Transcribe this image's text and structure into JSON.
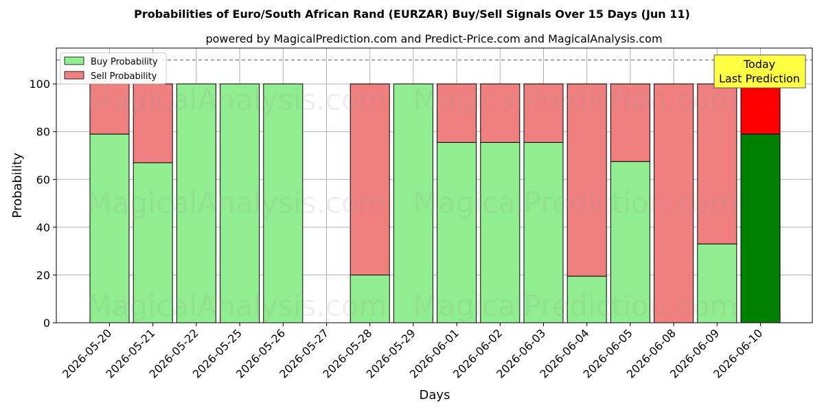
{
  "title": "Probabilities of Euro/South African Rand (EURZAR) Buy/Sell Signals Over 15 Days (Jun 11)",
  "subtitle": "powered by MagicalPrediction.com and Predict-Price.com and MagicalAnalysis.com",
  "watermarks": [
    "MagicalAnalysis.com",
    "MagicalPrediction.com"
  ],
  "annotation": {
    "line1": "Today",
    "line2": "Last Prediction"
  },
  "colors": {
    "buy": "#90ee90",
    "sell": "#f08080",
    "buy_today": "#008000",
    "sell_today": "#ff0000",
    "annotation_bg": "#ffff44"
  },
  "chart_data": {
    "type": "bar",
    "stacked": true,
    "xlabel": "Days",
    "ylabel": "Probability",
    "ylim": [
      0,
      115
    ],
    "yticks": [
      0,
      20,
      40,
      60,
      80,
      100
    ],
    "reference_line": 110,
    "grid": true,
    "legend_position": "top-left",
    "categories": [
      "2026-05-20",
      "2026-05-21",
      "2026-05-22",
      "2026-05-25",
      "2026-05-26",
      "2026-05-27",
      "2026-05-28",
      "2026-05-29",
      "2026-06-01",
      "2026-06-02",
      "2026-06-03",
      "2026-06-04",
      "2026-06-05",
      "2026-06-08",
      "2026-06-09",
      "2026-06-10"
    ],
    "series": [
      {
        "name": "Buy Probability",
        "values": [
          79,
          67,
          100,
          100,
          100,
          0,
          20,
          100,
          75.5,
          75.5,
          75.5,
          19.5,
          67.5,
          0,
          33,
          79
        ]
      },
      {
        "name": "Sell Probability",
        "values": [
          21,
          33,
          0,
          0,
          0,
          0,
          80,
          0,
          24.5,
          24.5,
          24.5,
          80.5,
          32.5,
          100,
          67,
          21
        ]
      }
    ]
  }
}
